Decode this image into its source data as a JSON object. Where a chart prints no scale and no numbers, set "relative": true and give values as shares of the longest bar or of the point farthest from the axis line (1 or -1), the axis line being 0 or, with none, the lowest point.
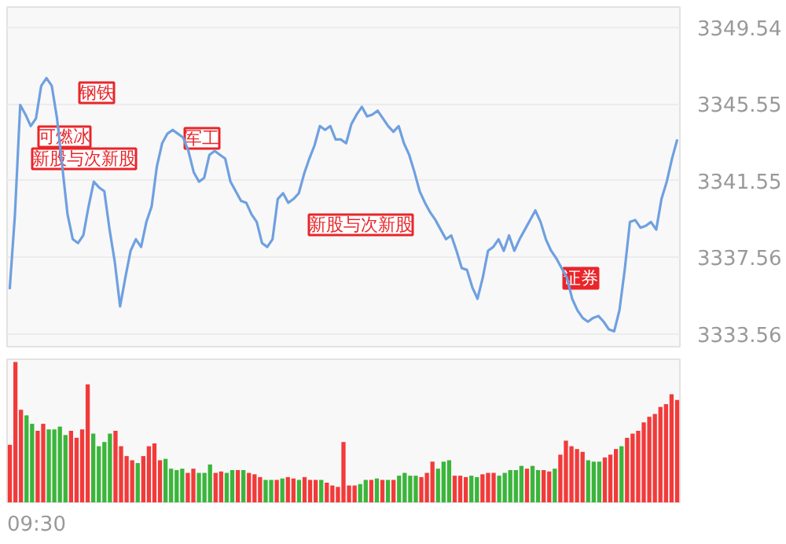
{
  "chart_data": [
    {
      "type": "line",
      "ylim": [
        3332.9,
        3350.6
      ],
      "yticks": [
        3333.56,
        3337.56,
        3341.55,
        3345.55,
        3349.54
      ],
      "grid": "y",
      "categories": [
        null,
        null,
        null,
        null,
        null,
        null,
        null,
        null,
        null,
        null,
        null,
        null,
        null,
        null,
        null,
        null,
        null,
        null,
        null,
        null,
        null,
        null,
        null,
        null,
        null,
        null,
        null,
        null,
        null,
        null,
        null,
        null,
        null,
        null,
        null,
        null,
        null,
        null,
        null,
        null,
        null,
        null,
        null,
        null,
        null,
        null,
        null,
        null,
        null,
        null,
        null,
        null,
        null,
        null,
        null,
        null,
        null,
        null,
        null,
        null,
        null,
        null,
        null,
        null,
        null,
        null,
        null,
        null,
        null,
        null,
        null,
        null,
        null,
        null,
        null,
        null,
        null,
        null,
        null,
        null,
        null,
        null,
        null,
        null,
        null,
        null,
        null,
        null,
        null,
        null,
        null,
        null,
        null,
        null,
        null,
        null,
        null,
        null,
        null,
        null,
        null,
        null,
        null,
        null,
        null,
        null,
        null,
        null,
        null,
        null,
        null,
        null,
        null,
        null,
        null,
        null,
        null,
        null,
        null,
        null,
        null,
        null,
        null,
        null,
        null,
        null,
        null,
        null
      ],
      "series": [
        {
          "color": "#6fa0e0",
          "values": [
            3335.9,
            3339.8,
            3345.5,
            3345.0,
            3344.4,
            3344.8,
            3346.5,
            3346.9,
            3346.5,
            3344.8,
            3342.3,
            3339.8,
            3338.5,
            3338.3,
            3338.7,
            3340.2,
            3341.5,
            3341.2,
            3341.0,
            3339.0,
            3337.3,
            3335.0,
            3336.5,
            3337.9,
            3338.5,
            3338.1,
            3339.4,
            3340.2,
            3342.3,
            3343.5,
            3344.0,
            3344.2,
            3344.0,
            3343.8,
            3343.1,
            3342.0,
            3341.5,
            3341.7,
            3342.9,
            3343.1,
            3342.9,
            3342.7,
            3341.5,
            3341.0,
            3340.5,
            3340.4,
            3339.8,
            3339.4,
            3338.3,
            3338.1,
            3338.5,
            3340.6,
            3340.9,
            3340.4,
            3340.6,
            3340.9,
            3341.9,
            3342.7,
            3343.4,
            3344.4,
            3344.2,
            3344.4,
            3343.7,
            3343.7,
            3343.5,
            3344.5,
            3345.0,
            3345.4,
            3344.9,
            3345.0,
            3345.2,
            3344.8,
            3344.4,
            3344.1,
            3344.4,
            3343.5,
            3342.9,
            3342.0,
            3341.0,
            3340.4,
            3339.9,
            3339.5,
            3339.0,
            3338.5,
            3338.7,
            3337.9,
            3337.0,
            3336.9,
            3336.0,
            3335.4,
            3336.5,
            3337.9,
            3338.1,
            3338.5,
            3337.9,
            3338.7,
            3337.9,
            3338.5,
            3339.0,
            3339.5,
            3340.0,
            3339.4,
            3338.5,
            3337.9,
            3337.5,
            3337.0,
            3336.5,
            3335.4,
            3334.8,
            3334.4,
            3334.2,
            3334.4,
            3334.5,
            3334.2,
            3333.8,
            3333.7,
            3334.8,
            3336.9,
            3339.4,
            3339.5,
            3339.1,
            3339.2,
            3339.4,
            3339.0,
            3340.6,
            3341.5,
            3342.7,
            3343.7
          ]
        }
      ],
      "annotations": [
        "可燃冰",
        "钢铁",
        "新股与次新股",
        "军工",
        "新股与次新股",
        "证券"
      ]
    },
    {
      "type": "bar",
      "relative": true,
      "categories": [
        null,
        null,
        null,
        null,
        null,
        null,
        null,
        null,
        null,
        null,
        null,
        null,
        null,
        null,
        null,
        null,
        null,
        null,
        null,
        null,
        null,
        null,
        null,
        null,
        null,
        null,
        null,
        null,
        null,
        null,
        null,
        null,
        null,
        null,
        null,
        null,
        null,
        null,
        null,
        null,
        null,
        null,
        null,
        null,
        null,
        null,
        null,
        null,
        null,
        null,
        null,
        null,
        null,
        null,
        null,
        null,
        null,
        null,
        null,
        null,
        null,
        null,
        null,
        null,
        null,
        null,
        null,
        null,
        null,
        null,
        null,
        null,
        null,
        null,
        null,
        null,
        null,
        null,
        null,
        null,
        null,
        null,
        null,
        null,
        null,
        null,
        null,
        null,
        null,
        null,
        null,
        null,
        null,
        null,
        null,
        null,
        null,
        null,
        null,
        null,
        null,
        null,
        null,
        null,
        null,
        null,
        null,
        null,
        null,
        null,
        null,
        null,
        null,
        null,
        null,
        null,
        null,
        null,
        null,
        null,
        null
      ],
      "values": [
        0.41,
        1,
        0.66,
        0.62,
        0.56,
        0.51,
        0.56,
        0.52,
        0.52,
        0.54,
        0.48,
        0.51,
        0.46,
        0.52,
        0.84,
        0.49,
        0.4,
        0.43,
        0.49,
        0.51,
        0.4,
        0.33,
        0.3,
        0.28,
        0.33,
        0.4,
        0.42,
        0.3,
        0.31,
        0.24,
        0.23,
        0.24,
        0.21,
        0.24,
        0.21,
        0.21,
        0.27,
        0.21,
        0.22,
        0.21,
        0.23,
        0.23,
        0.23,
        0.21,
        0.2,
        0.18,
        0.16,
        0.16,
        0.16,
        0.17,
        0.18,
        0.17,
        0.16,
        0.18,
        0.16,
        0.16,
        0.16,
        0.14,
        0.12,
        0.11,
        0.43,
        0.12,
        0.12,
        0.13,
        0.16,
        0.16,
        0.17,
        0.16,
        0.16,
        0.16,
        0.19,
        0.21,
        0.19,
        0.19,
        0.18,
        0.21,
        0.29,
        0.24,
        0.29,
        0.3,
        0.19,
        0.19,
        0.18,
        0.19,
        0.18,
        0.2,
        0.21,
        0.21,
        0.19,
        0.21,
        0.23,
        0.23,
        0.26,
        0.24,
        0.26,
        0.23,
        0.23,
        0.22,
        0.24,
        0.34,
        0.44,
        0.4,
        0.38,
        0.36,
        0.3,
        0.29,
        0.29,
        0.32,
        0.34,
        0.38,
        0.4,
        0.46,
        0.49,
        0.51,
        0.57,
        0.61,
        0.63,
        0.68,
        0.7,
        0.77,
        0.73
      ],
      "colors": [
        "#f23a3a",
        "#f23a3a",
        "#f23a3a",
        "#3bb53b",
        "#3bb53b",
        "#f23a3a",
        "#f23a3a",
        "#3bb53b",
        "#3bb53b",
        "#3bb53b",
        "#3bb53b",
        "#f23a3a",
        "#f23a3a",
        "#f23a3a",
        "#f23a3a",
        "#3bb53b",
        "#3bb53b",
        "#3bb53b",
        "#3bb53b",
        "#f23a3a",
        "#f23a3a",
        "#f23a3a",
        "#f23a3a",
        "#3bb53b",
        "#f23a3a",
        "#f23a3a",
        "#f23a3a",
        "#f23a3a",
        "#3bb53b",
        "#3bb53b",
        "#3bb53b",
        "#3bb53b",
        "#f23a3a",
        "#f23a3a",
        "#3bb53b",
        "#3bb53b",
        "#3bb53b",
        "#f23a3a",
        "#f23a3a",
        "#3bb53b",
        "#3bb53b",
        "#f23a3a",
        "#3bb53b",
        "#f23a3a",
        "#f23a3a",
        "#f23a3a",
        "#3bb53b",
        "#3bb53b",
        "#f23a3a",
        "#3bb53b",
        "#f23a3a",
        "#f23a3a",
        "#3bb53b",
        "#f23a3a",
        "#f23a3a",
        "#f23a3a",
        "#3bb53b",
        "#f23a3a",
        "#f23a3a",
        "#f23a3a",
        "#f23a3a",
        "#f23a3a",
        "#f23a3a",
        "#3bb53b",
        "#3bb53b",
        "#f23a3a",
        "#3bb53b",
        "#f23a3a",
        "#3bb53b",
        "#f23a3a",
        "#3bb53b",
        "#3bb53b",
        "#3bb53b",
        "#3bb53b",
        "#f23a3a",
        "#f23a3a",
        "#f23a3a",
        "#3bb53b",
        "#3bb53b",
        "#3bb53b",
        "#f23a3a",
        "#f23a3a",
        "#f23a3a",
        "#3bb53b",
        "#3bb53b",
        "#f23a3a",
        "#f23a3a",
        "#f23a3a",
        "#3bb53b",
        "#3bb53b",
        "#3bb53b",
        "#3bb53b",
        "#3bb53b",
        "#f23a3a",
        "#3bb53b",
        "#3bb53b",
        "#f23a3a",
        "#f23a3a",
        "#3bb53b",
        "#f23a3a",
        "#f23a3a",
        "#f23a3a",
        "#f23a3a",
        "#f23a3a",
        "#3bb53b",
        "#3bb53b",
        "#3bb53b",
        "#f23a3a",
        "#f23a3a",
        "#f23a3a",
        "#3bb53b",
        "#f23a3a",
        "#f23a3a",
        "#f23a3a",
        "#f23a3a",
        "#f23a3a",
        "#f23a3a",
        "#f23a3a",
        "#f23a3a",
        "#f23a3a",
        "#f23a3a"
      ],
      "annotations": [
        "09:30"
      ]
    }
  ]
}
